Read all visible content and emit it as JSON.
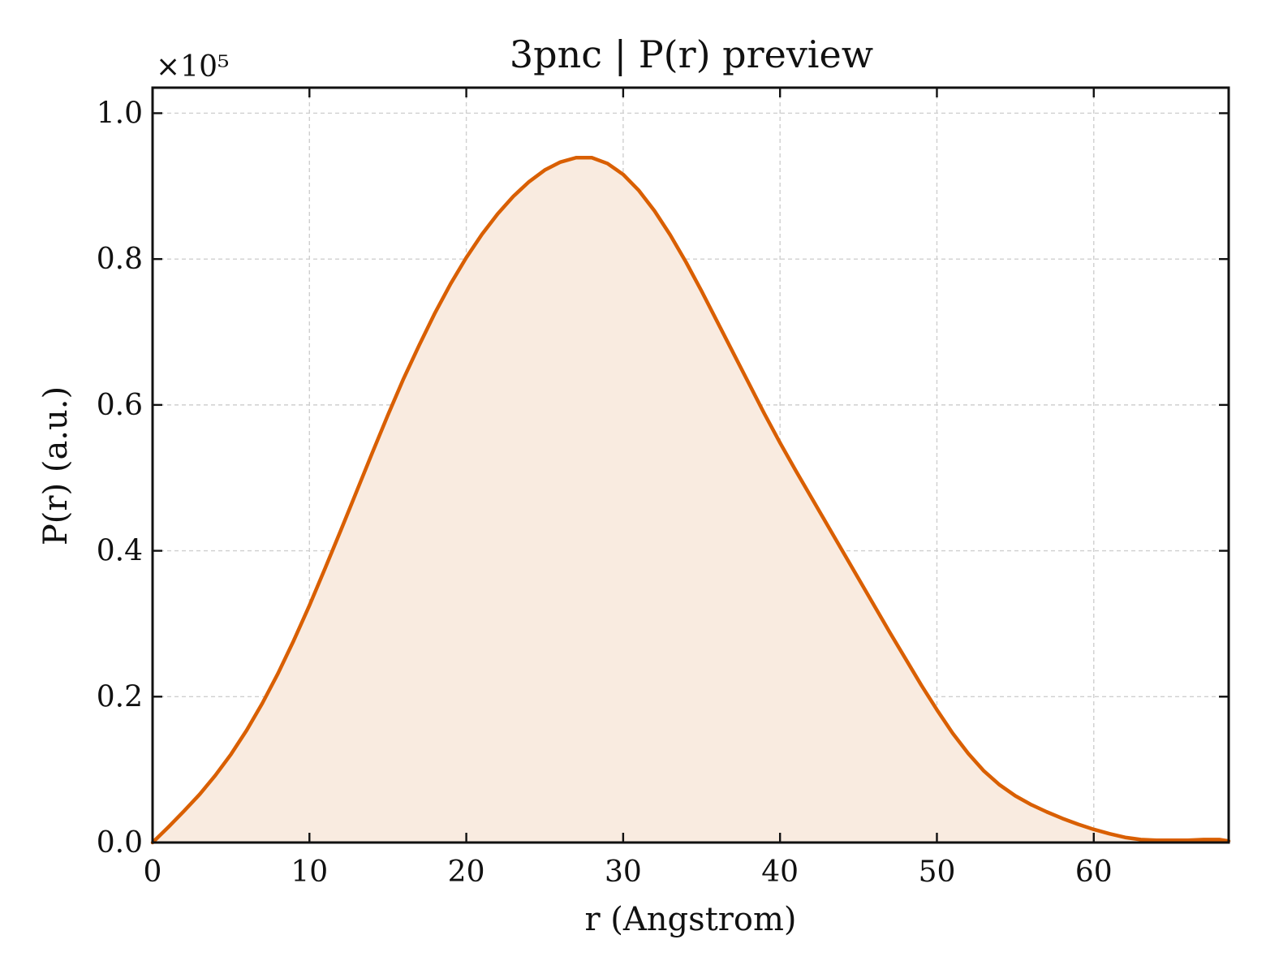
{
  "chart_data": {
    "type": "area",
    "title": "3pnc | P(r) preview",
    "xlabel": "r (Angstrom)",
    "ylabel": "P(r) (a.u.)",
    "y_multiplier_label": "×10⁵",
    "y_scale_factor": 100000,
    "xlim": [
      0,
      68.6
    ],
    "ylim": [
      0,
      1.035
    ],
    "xticks": [
      0,
      10,
      20,
      30,
      40,
      50,
      60
    ],
    "xtick_labels": [
      "0",
      "10",
      "20",
      "30",
      "40",
      "50",
      "60"
    ],
    "yticks": [
      0.0,
      0.2,
      0.4,
      0.6,
      0.8,
      1.0
    ],
    "ytick_labels": [
      "0.0",
      "0.2",
      "0.4",
      "0.6",
      "0.8",
      "1.0"
    ],
    "grid": true,
    "line_color": "#d95f02",
    "fill_color": "#f9ebe0",
    "series": [
      {
        "x": [
          0,
          1,
          2,
          3,
          4,
          5,
          6,
          7,
          8,
          9,
          10,
          11,
          12,
          13,
          14,
          15,
          16,
          17,
          18,
          19,
          20,
          21,
          22,
          23,
          24,
          25,
          26,
          27,
          28,
          29,
          30,
          31,
          32,
          33,
          34,
          35,
          36,
          37,
          38,
          39,
          40,
          41,
          42,
          43,
          44,
          45,
          46,
          47,
          48,
          49,
          50,
          51,
          52,
          53,
          54,
          55,
          56,
          57,
          58,
          59,
          60,
          61,
          62,
          63,
          64,
          65,
          66,
          67,
          68,
          68.6
        ],
        "values": [
          0.0,
          0.021,
          0.043,
          0.066,
          0.092,
          0.121,
          0.154,
          0.191,
          0.232,
          0.277,
          0.325,
          0.376,
          0.428,
          0.481,
          0.534,
          0.586,
          0.636,
          0.682,
          0.726,
          0.766,
          0.802,
          0.834,
          0.862,
          0.886,
          0.906,
          0.922,
          0.933,
          0.939,
          0.939,
          0.931,
          0.916,
          0.894,
          0.866,
          0.833,
          0.796,
          0.756,
          0.714,
          0.672,
          0.63,
          0.588,
          0.548,
          0.51,
          0.473,
          0.436,
          0.399,
          0.362,
          0.325,
          0.288,
          0.252,
          0.216,
          0.182,
          0.15,
          0.122,
          0.098,
          0.079,
          0.064,
          0.052,
          0.042,
          0.033,
          0.025,
          0.018,
          0.012,
          0.007,
          0.004,
          0.003,
          0.003,
          0.003,
          0.004,
          0.004,
          0.002
        ]
      }
    ]
  }
}
